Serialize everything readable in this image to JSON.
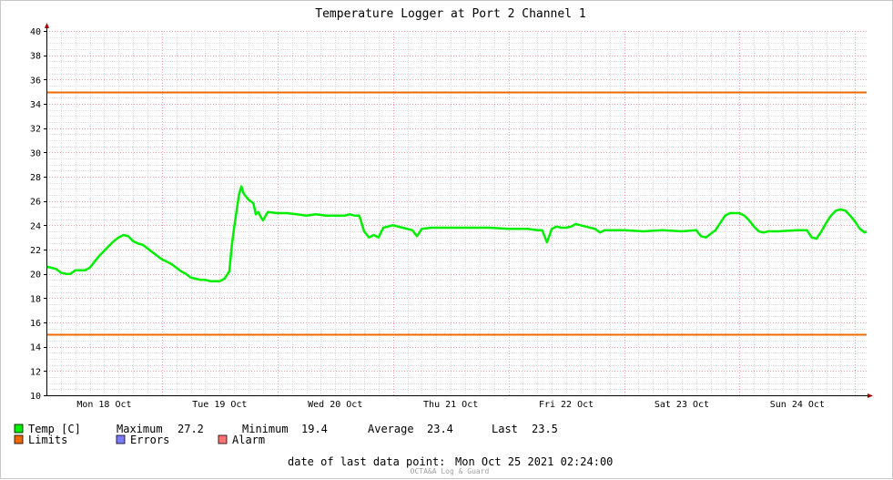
{
  "chart_data": {
    "type": "line",
    "title": "Temperature Logger at Port 2 Channel 1",
    "ylim": [
      10,
      40
    ],
    "y_ticks": [
      10,
      12,
      14,
      16,
      18,
      20,
      22,
      24,
      26,
      28,
      30,
      32,
      34,
      36,
      38,
      40
    ],
    "x_range": [
      "Mon 18 Oct 2021 00:00:00",
      "Mon 25 Oct 2021 02:24:00"
    ],
    "x_tick_labels": [
      "Mon 18 Oct",
      "Tue 19 Oct",
      "Wed 20 Oct",
      "Thu 21 Oct",
      "Fri 22 Oct",
      "Sat 23 Oct",
      "Sun 24 Oct"
    ],
    "grid": true,
    "series": [
      {
        "name": "Temp [C]",
        "color": "#00ee00",
        "points": [
          [
            "Mon 18 Oct 00:00",
            20.6
          ],
          [
            "Mon 18 Oct 01:00",
            20.5
          ],
          [
            "Mon 18 Oct 02:00",
            20.4
          ],
          [
            "Mon 18 Oct 03:00",
            20.1
          ],
          [
            "Mon 18 Oct 04:00",
            20.0
          ],
          [
            "Mon 18 Oct 05:00",
            20.0
          ],
          [
            "Mon 18 Oct 06:00",
            20.3
          ],
          [
            "Mon 18 Oct 08:00",
            20.3
          ],
          [
            "Mon 18 Oct 09:00",
            20.5
          ],
          [
            "Mon 18 Oct 10:00",
            21.0
          ],
          [
            "Mon 18 Oct 11:00",
            21.5
          ],
          [
            "Mon 18 Oct 12:00",
            21.9
          ],
          [
            "Mon 18 Oct 13:00",
            22.3
          ],
          [
            "Mon 18 Oct 14:00",
            22.7
          ],
          [
            "Mon 18 Oct 15:00",
            23.0
          ],
          [
            "Mon 18 Oct 16:00",
            23.2
          ],
          [
            "Mon 18 Oct 17:00",
            23.1
          ],
          [
            "Mon 18 Oct 18:00",
            22.7
          ],
          [
            "Mon 18 Oct 19:00",
            22.5
          ],
          [
            "Mon 18 Oct 20:00",
            22.4
          ],
          [
            "Mon 18 Oct 21:00",
            22.1
          ],
          [
            "Mon 18 Oct 22:00",
            21.8
          ],
          [
            "Mon 18 Oct 23:00",
            21.5
          ],
          [
            "Tue 19 Oct 00:00",
            21.2
          ],
          [
            "Tue 19 Oct 01:00",
            21.0
          ],
          [
            "Tue 19 Oct 02:00",
            20.8
          ],
          [
            "Tue 19 Oct 03:00",
            20.5
          ],
          [
            "Tue 19 Oct 04:00",
            20.2
          ],
          [
            "Tue 19 Oct 05:00",
            20.0
          ],
          [
            "Tue 19 Oct 06:00",
            19.7
          ],
          [
            "Tue 19 Oct 07:00",
            19.6
          ],
          [
            "Tue 19 Oct 08:00",
            19.5
          ],
          [
            "Tue 19 Oct 09:00",
            19.5
          ],
          [
            "Tue 19 Oct 10:00",
            19.4
          ],
          [
            "Tue 19 Oct 11:00",
            19.4
          ],
          [
            "Tue 19 Oct 12:00",
            19.4
          ],
          [
            "Tue 19 Oct 13:00",
            19.6
          ],
          [
            "Tue 19 Oct 14:00",
            20.2
          ],
          [
            "Tue 19 Oct 14:30",
            22.3
          ],
          [
            "Tue 19 Oct 15:00",
            23.8
          ],
          [
            "Tue 19 Oct 15:30",
            25.2
          ],
          [
            "Tue 19 Oct 16:00",
            26.5
          ],
          [
            "Tue 19 Oct 16:30",
            27.2
          ],
          [
            "Tue 19 Oct 17:00",
            26.6
          ],
          [
            "Tue 19 Oct 18:00",
            26.1
          ],
          [
            "Tue 19 Oct 19:00",
            25.8
          ],
          [
            "Tue 19 Oct 19:30",
            24.9
          ],
          [
            "Tue 19 Oct 20:00",
            25.1
          ],
          [
            "Tue 19 Oct 20:30",
            24.7
          ],
          [
            "Tue 19 Oct 21:00",
            24.4
          ],
          [
            "Tue 19 Oct 22:00",
            25.1
          ],
          [
            "Wed 20 Oct 00:00",
            25.0
          ],
          [
            "Wed 20 Oct 02:00",
            25.0
          ],
          [
            "Wed 20 Oct 04:00",
            24.9
          ],
          [
            "Wed 20 Oct 06:00",
            24.8
          ],
          [
            "Wed 20 Oct 08:00",
            24.9
          ],
          [
            "Wed 20 Oct 10:00",
            24.8
          ],
          [
            "Wed 20 Oct 12:00",
            24.8
          ],
          [
            "Wed 20 Oct 14:00",
            24.8
          ],
          [
            "Wed 20 Oct 15:00",
            24.9
          ],
          [
            "Wed 20 Oct 16:00",
            24.8
          ],
          [
            "Wed 20 Oct 17:00",
            24.8
          ],
          [
            "Wed 20 Oct 18:00",
            23.5
          ],
          [
            "Wed 20 Oct 19:00",
            23.0
          ],
          [
            "Wed 20 Oct 20:00",
            23.2
          ],
          [
            "Wed 20 Oct 21:00",
            23.0
          ],
          [
            "Wed 20 Oct 22:00",
            23.8
          ],
          [
            "Thu 21 Oct 00:00",
            24.0
          ],
          [
            "Thu 21 Oct 02:00",
            23.8
          ],
          [
            "Thu 21 Oct 04:00",
            23.6
          ],
          [
            "Thu 21 Oct 05:00",
            23.1
          ],
          [
            "Thu 21 Oct 06:00",
            23.7
          ],
          [
            "Thu 21 Oct 08:00",
            23.8
          ],
          [
            "Thu 21 Oct 12:00",
            23.8
          ],
          [
            "Thu 21 Oct 16:00",
            23.8
          ],
          [
            "Thu 21 Oct 20:00",
            23.8
          ],
          [
            "Fri 22 Oct 00:00",
            23.7
          ],
          [
            "Fri 22 Oct 04:00",
            23.7
          ],
          [
            "Fri 22 Oct 06:00",
            23.6
          ],
          [
            "Fri 22 Oct 07:00",
            23.6
          ],
          [
            "Fri 22 Oct 08:00",
            22.6
          ],
          [
            "Fri 22 Oct 09:00",
            23.7
          ],
          [
            "Fri 22 Oct 10:00",
            23.9
          ],
          [
            "Fri 22 Oct 11:00",
            23.8
          ],
          [
            "Fri 22 Oct 12:00",
            23.8
          ],
          [
            "Fri 22 Oct 13:00",
            23.9
          ],
          [
            "Fri 22 Oct 14:00",
            24.1
          ],
          [
            "Fri 22 Oct 16:00",
            23.9
          ],
          [
            "Fri 22 Oct 18:00",
            23.7
          ],
          [
            "Fri 22 Oct 19:00",
            23.4
          ],
          [
            "Fri 22 Oct 20:00",
            23.6
          ],
          [
            "Sat 23 Oct 00:00",
            23.6
          ],
          [
            "Sat 23 Oct 04:00",
            23.5
          ],
          [
            "Sat 23 Oct 08:00",
            23.6
          ],
          [
            "Sat 23 Oct 12:00",
            23.5
          ],
          [
            "Sat 23 Oct 15:00",
            23.6
          ],
          [
            "Sat 23 Oct 16:00",
            23.1
          ],
          [
            "Sat 23 Oct 17:00",
            23.0
          ],
          [
            "Sat 23 Oct 18:00",
            23.3
          ],
          [
            "Sat 23 Oct 19:00",
            23.6
          ],
          [
            "Sat 23 Oct 20:00",
            24.2
          ],
          [
            "Sat 23 Oct 21:00",
            24.8
          ],
          [
            "Sat 23 Oct 22:00",
            25.0
          ],
          [
            "Sun 24 Oct 00:00",
            25.0
          ],
          [
            "Sun 24 Oct 01:00",
            24.8
          ],
          [
            "Sun 24 Oct 02:00",
            24.4
          ],
          [
            "Sun 24 Oct 03:00",
            23.9
          ],
          [
            "Sun 24 Oct 04:00",
            23.5
          ],
          [
            "Sun 24 Oct 05:00",
            23.4
          ],
          [
            "Sun 24 Oct 06:00",
            23.5
          ],
          [
            "Sun 24 Oct 08:00",
            23.5
          ],
          [
            "Sun 24 Oct 12:00",
            23.6
          ],
          [
            "Sun 24 Oct 14:00",
            23.6
          ],
          [
            "Sun 24 Oct 15:00",
            23.0
          ],
          [
            "Sun 24 Oct 16:00",
            22.9
          ],
          [
            "Sun 24 Oct 17:00",
            23.5
          ],
          [
            "Sun 24 Oct 18:00",
            24.2
          ],
          [
            "Sun 24 Oct 19:00",
            24.8
          ],
          [
            "Sun 24 Oct 20:00",
            25.2
          ],
          [
            "Sun 24 Oct 21:00",
            25.3
          ],
          [
            "Sun 24 Oct 22:00",
            25.2
          ],
          [
            "Sun 24 Oct 23:00",
            24.8
          ],
          [
            "Mon 25 Oct 00:00",
            24.3
          ],
          [
            "Mon 25 Oct 01:00",
            23.7
          ],
          [
            "Mon 25 Oct 02:00",
            23.4
          ],
          [
            "Mon 25 Oct 02:24",
            23.5
          ]
        ]
      },
      {
        "name": "Limits",
        "color": "#ee6a00",
        "values": [
          35,
          15
        ]
      },
      {
        "name": "Errors",
        "color": "#7b7bff"
      },
      {
        "name": "Alarm",
        "color": "#ff7373"
      }
    ]
  },
  "legend": {
    "temp_label": "Temp [C]",
    "limits_label": "Limits",
    "errors_label": "Errors",
    "alarm_label": "Alarm",
    "maximum_label": "Maximum",
    "maximum_value": "27.2",
    "minimum_label": "Minimum",
    "minimum_value": "19.4",
    "average_label": "Average",
    "average_value": "23.4",
    "last_label": "Last",
    "last_value": "23.5"
  },
  "footer": {
    "last_point_label": "date of last data point:",
    "last_point_value": "Mon Oct 25 2021 02:24:00",
    "credit": "OCTA&A Log & Guard"
  }
}
